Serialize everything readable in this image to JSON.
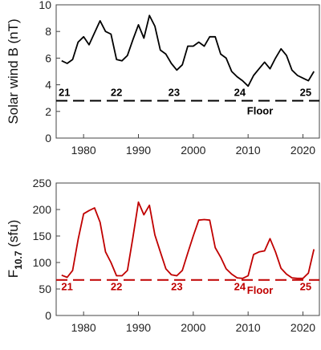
{
  "chart_data": [
    {
      "type": "line",
      "title": "",
      "ylabel": "Solar wind B (nT)",
      "xlabel": "",
      "xlim": [
        1975,
        2023
      ],
      "ylim": [
        0,
        10
      ],
      "yticks": [
        0,
        2,
        4,
        6,
        8,
        10
      ],
      "xticks": [
        1980,
        1990,
        2000,
        2010,
        2020
      ],
      "grid": false,
      "line_color": "#000000",
      "series": [
        {
          "x": [
            1976,
            1977,
            1978,
            1979,
            1980,
            1981,
            1982,
            1983,
            1984,
            1985,
            1986,
            1987,
            1988,
            1989,
            1990,
            1991,
            1992,
            1993,
            1994,
            1995,
            1996,
            1997,
            1998,
            1999,
            2000,
            2001,
            2002,
            2003,
            2004,
            2005,
            2006,
            2007,
            2008,
            2009,
            2010,
            2011,
            2012,
            2013,
            2014,
            2015,
            2016,
            2017,
            2018,
            2019,
            2020,
            2021,
            2022
          ],
          "values": [
            5.8,
            5.6,
            5.9,
            7.2,
            7.6,
            7.0,
            7.9,
            8.8,
            8.0,
            7.8,
            5.9,
            5.8,
            6.2,
            7.4,
            8.5,
            7.5,
            9.2,
            8.4,
            6.6,
            6.3,
            5.6,
            5.1,
            5.5,
            6.9,
            6.9,
            7.2,
            6.9,
            7.6,
            7.6,
            6.3,
            6.0,
            5.0,
            4.6,
            4.3,
            3.9,
            4.7,
            5.2,
            5.7,
            5.2,
            6.0,
            6.7,
            6.2,
            5.1,
            4.7,
            4.5,
            4.3,
            5.0
          ]
        }
      ],
      "floor": {
        "value": 2.8,
        "label": "Floor",
        "style": "dashed"
      },
      "cycle_labels": [
        {
          "text": "21",
          "x": 1976.5,
          "y": 3.45
        },
        {
          "text": "22",
          "x": 1986,
          "y": 3.45
        },
        {
          "text": "23",
          "x": 1996.5,
          "y": 3.45
        },
        {
          "text": "24",
          "x": 2008.5,
          "y": 3.45
        },
        {
          "text": "25",
          "x": 2020.5,
          "y": 3.45
        }
      ]
    },
    {
      "type": "line",
      "title": "",
      "ylabel": "F10.7 (sfu)",
      "ylabel_main": "F",
      "ylabel_sub": "10.7",
      "ylabel_rest": " (sfu)",
      "xlabel": "",
      "xlim": [
        1975,
        2023
      ],
      "ylim": [
        0,
        250
      ],
      "yticks": [
        0,
        50,
        100,
        150,
        200,
        250
      ],
      "xticks": [
        1980,
        1990,
        2000,
        2010,
        2020
      ],
      "grid": false,
      "line_color": "#c00000",
      "series": [
        {
          "x": [
            1976,
            1977,
            1978,
            1979,
            1980,
            1981,
            1982,
            1983,
            1984,
            1985,
            1986,
            1987,
            1988,
            1989,
            1990,
            1991,
            1992,
            1993,
            1994,
            1995,
            1996,
            1997,
            1998,
            1999,
            2000,
            2001,
            2002,
            2003,
            2004,
            2005,
            2006,
            2007,
            2008,
            2009,
            2010,
            2011,
            2012,
            2013,
            2014,
            2015,
            2016,
            2017,
            2018,
            2019,
            2020,
            2021,
            2022
          ],
          "values": [
            76,
            72,
            85,
            143,
            192,
            198,
            203,
            176,
            120,
            100,
            75,
            75,
            85,
            148,
            214,
            190,
            208,
            152,
            120,
            88,
            77,
            75,
            85,
            118,
            150,
            180,
            181,
            180,
            128,
            110,
            88,
            78,
            71,
            70,
            75,
            115,
            120,
            122,
            145,
            120,
            89,
            78,
            71,
            70,
            70,
            80,
            125
          ]
        }
      ],
      "floor": {
        "value": 67,
        "label": "Floor",
        "style": "dashed"
      },
      "cycle_labels": [
        {
          "text": "21",
          "x": 1977,
          "y": 55
        },
        {
          "text": "22",
          "x": 1986,
          "y": 55
        },
        {
          "text": "23",
          "x": 1997,
          "y": 55
        },
        {
          "text": "24",
          "x": 2008.5,
          "y": 55
        },
        {
          "text": "25",
          "x": 2020.5,
          "y": 55
        }
      ]
    }
  ]
}
